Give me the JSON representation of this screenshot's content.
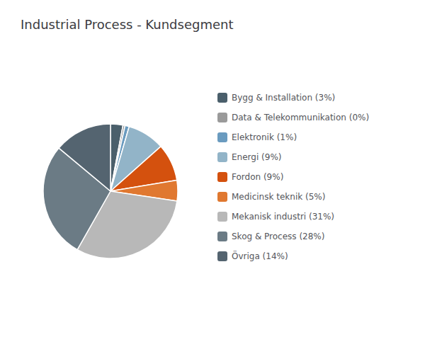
{
  "chart_data": {
    "type": "pie",
    "title": "Industrial Process - Kundsegment",
    "categories": [
      "Bygg & Installation (3%)",
      "Data & Telekommunikation (0%)",
      "Elektronik (1%)",
      "Energi (9%)",
      "Fordon (9%)",
      "Medicinsk teknik (5%)",
      "Mekanisk industri (31%)",
      "Skog & Process (28%)",
      "Övriga (14%)"
    ],
    "values": [
      3,
      0.5,
      1,
      9,
      9,
      5,
      31,
      28,
      14
    ],
    "colors": [
      "#4a5f6b",
      "#9a9a9a",
      "#6a9bbf",
      "#92b4c8",
      "#d4510e",
      "#e07830",
      "#b8b8b8",
      "#6b7b85",
      "#546470"
    ],
    "legend": "right"
  }
}
